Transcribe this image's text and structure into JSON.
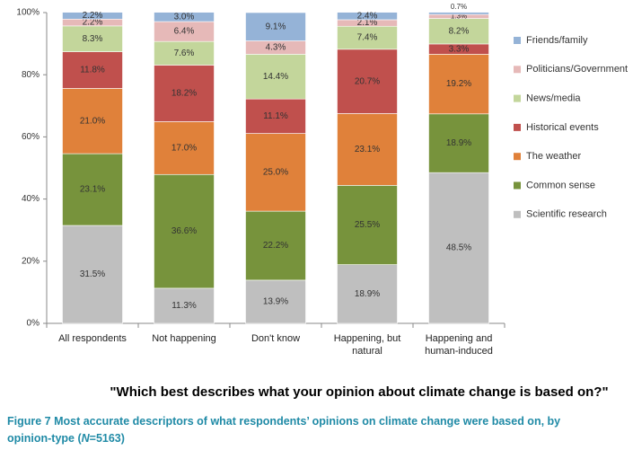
{
  "chart_data": {
    "type": "stacked_bar",
    "subtitle": "\"Which best describes what your opinion about climate change is based on?\"",
    "caption": {
      "text": "Figure 7 Most accurate descriptors of what respondents’ opinions on climate change were based on, by opinion-type (",
      "italic": "N",
      "suffix": "=5163)"
    },
    "categories": [
      "All respondents",
      "Not happening",
      "Don't know",
      "Happening, but natural",
      "Happening and human-induced"
    ],
    "series": [
      {
        "name": "Scientific research",
        "color": "#bfbfbf",
        "values": [
          31.5,
          11.3,
          13.9,
          18.9,
          48.5
        ],
        "value_labels": [
          "31.5%",
          "11.3%",
          "13.9%",
          "18.9%",
          "48.5%"
        ]
      },
      {
        "name": "Common sense",
        "color": "#77933c",
        "values": [
          23.1,
          36.6,
          22.2,
          25.5,
          18.9
        ],
        "value_labels": [
          "23.1%",
          "36.6%",
          "22.2%",
          "25.5%",
          "18.9%"
        ]
      },
      {
        "name": "The weather",
        "color": "#e0813a",
        "values": [
          21.0,
          17.0,
          25.0,
          23.1,
          19.2
        ],
        "value_labels": [
          "21.0%",
          "17.0%",
          "25.0%",
          "23.1%",
          "19.2%"
        ]
      },
      {
        "name": "Historical events",
        "color": "#c0504d",
        "values": [
          11.8,
          18.2,
          11.1,
          20.7,
          3.3
        ],
        "value_labels": [
          "11.8%",
          "18.2%",
          "11.1%",
          "20.7%",
          "3.3%"
        ]
      },
      {
        "name": "News/media",
        "color": "#c3d69b",
        "values": [
          8.3,
          7.6,
          14.4,
          7.4,
          8.2
        ],
        "value_labels": [
          "8.3%",
          "7.6%",
          "14.4%",
          "7.4%",
          "8.2%"
        ]
      },
      {
        "name": "Politicians/Government",
        "color": "#e6b9b8",
        "values": [
          2.2,
          6.4,
          4.3,
          2.1,
          1.3
        ],
        "value_labels": [
          "2.2%",
          "6.4%",
          "4.3%",
          "2.1%",
          "1.3%"
        ]
      },
      {
        "name": "Friends/family",
        "color": "#95b3d7",
        "values": [
          2.2,
          3.0,
          9.1,
          2.4,
          0.7
        ],
        "value_labels": [
          "2.2%",
          "3.0%",
          "9.1%",
          "2.4%",
          "0.7%"
        ]
      }
    ],
    "ylim": [
      0,
      100
    ],
    "yticks": [
      {
        "value": 0,
        "label": "0%"
      },
      {
        "value": 20,
        "label": "20%"
      },
      {
        "value": 40,
        "label": "40%"
      },
      {
        "value": 60,
        "label": "60%"
      },
      {
        "value": 80,
        "label": "80%"
      },
      {
        "value": 100,
        "label": "100%"
      }
    ],
    "legend": "right"
  }
}
